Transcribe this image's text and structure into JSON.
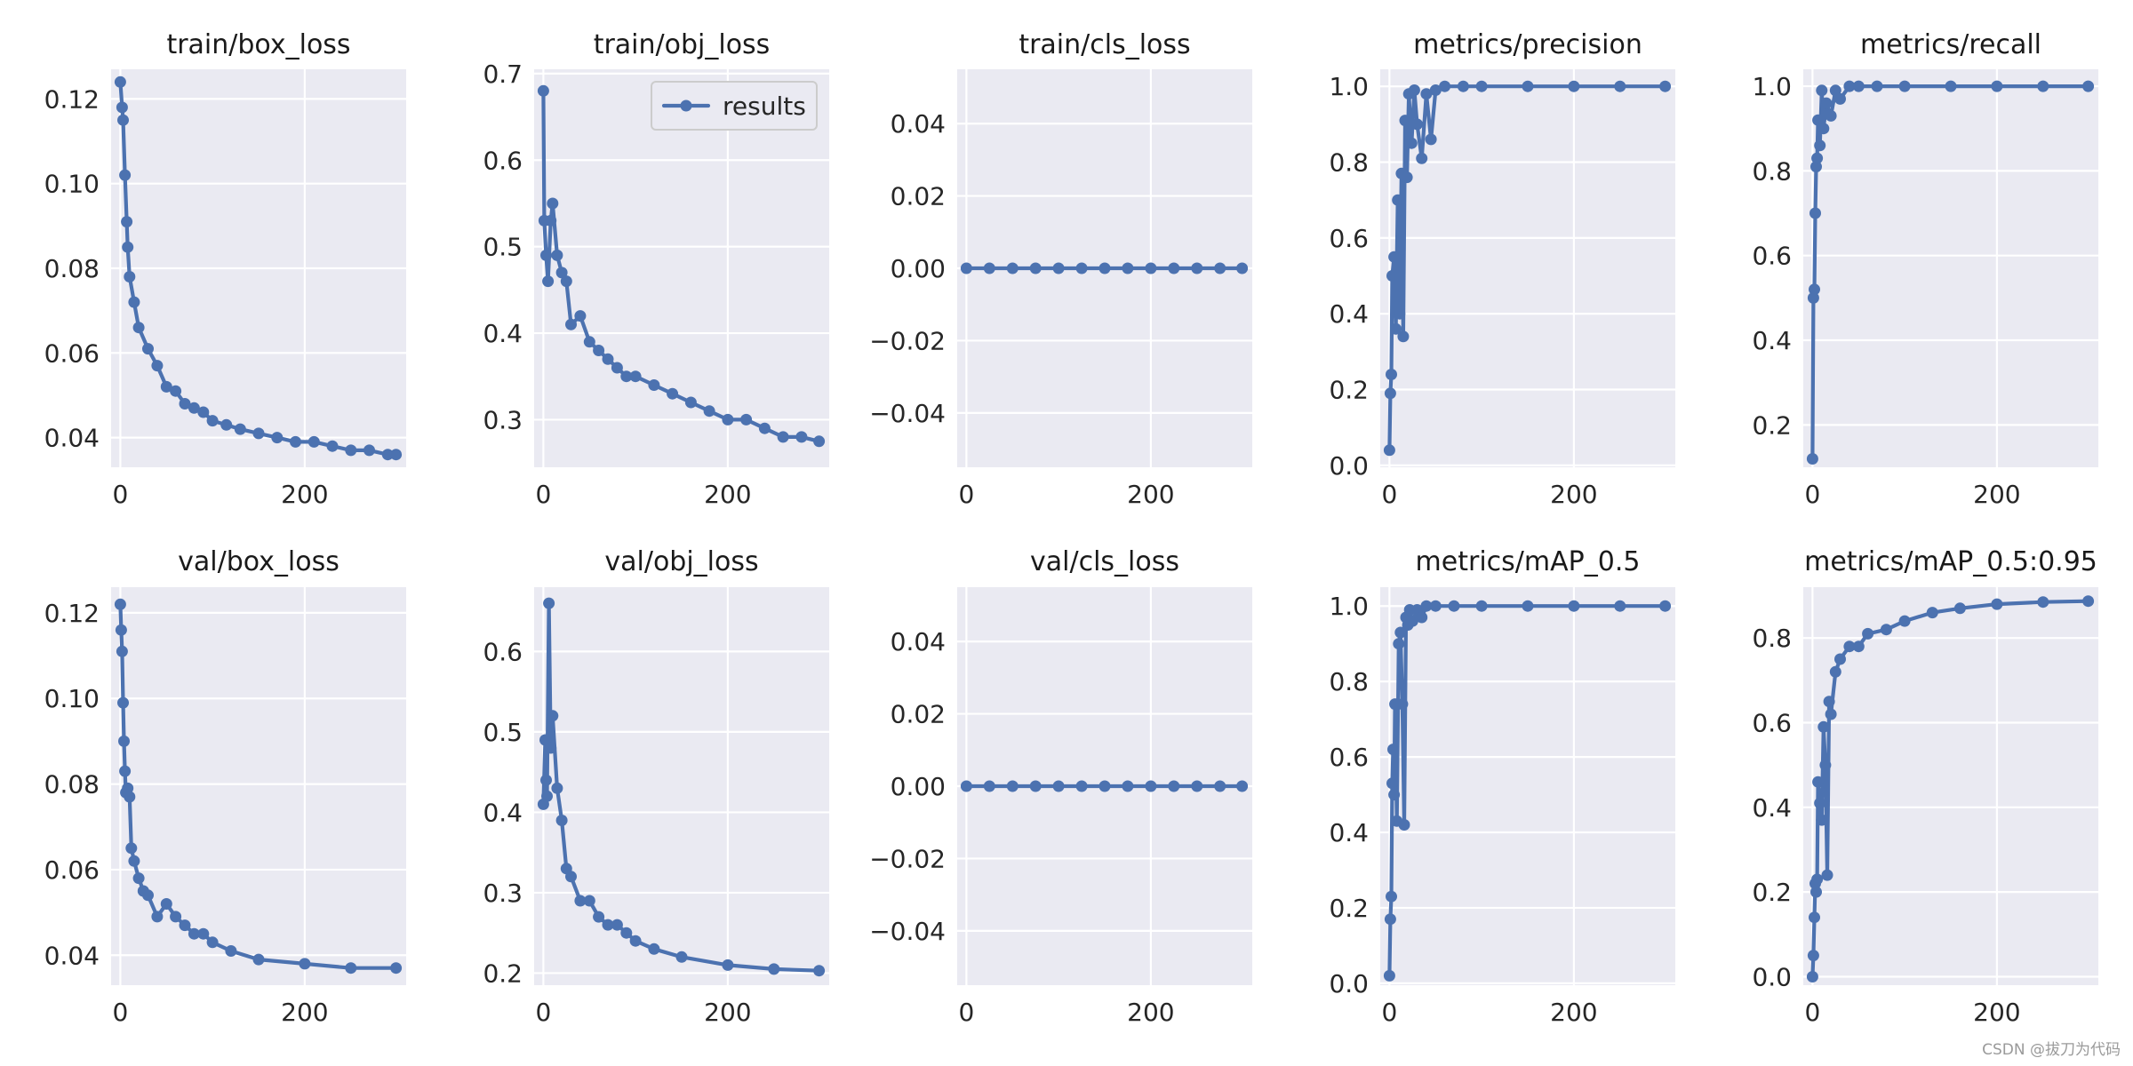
{
  "figure": {
    "watermark": "CSDN @拔刀为代码",
    "legend_label": "results",
    "series_color": "#4c72b0",
    "panel_background": "#eaeaf2"
  },
  "chart_data": [
    {
      "type": "line",
      "title": "train/box_loss",
      "xlim": [
        -10,
        310
      ],
      "ylim": [
        0.033,
        0.127
      ],
      "xticks": [
        0,
        200
      ],
      "xtick_labels": [
        "0",
        "200"
      ],
      "yticks": [
        0.04,
        0.06,
        0.08,
        0.1,
        0.12
      ],
      "ytick_labels": [
        "0.04",
        "0.06",
        "0.08",
        "0.10",
        "0.12"
      ],
      "x": [
        0,
        2,
        3,
        5,
        7,
        8,
        10,
        15,
        20,
        30,
        40,
        50,
        60,
        70,
        80,
        90,
        100,
        115,
        130,
        150,
        170,
        190,
        210,
        230,
        250,
        270,
        290,
        299
      ],
      "y": [
        0.124,
        0.118,
        0.115,
        0.102,
        0.091,
        0.085,
        0.078,
        0.072,
        0.066,
        0.061,
        0.057,
        0.052,
        0.051,
        0.048,
        0.047,
        0.046,
        0.044,
        0.043,
        0.042,
        0.041,
        0.04,
        0.039,
        0.039,
        0.038,
        0.037,
        0.037,
        0.036,
        0.036
      ]
    },
    {
      "type": "line",
      "title": "train/obj_loss",
      "xlim": [
        -10,
        310
      ],
      "ylim": [
        0.245,
        0.705
      ],
      "xticks": [
        0,
        200
      ],
      "xtick_labels": [
        "0",
        "200"
      ],
      "yticks": [
        0.3,
        0.4,
        0.5,
        0.6,
        0.7
      ],
      "ytick_labels": [
        "0.3",
        "0.4",
        "0.5",
        "0.6",
        "0.7"
      ],
      "legend": [
        "results"
      ],
      "x": [
        0,
        1,
        3,
        5,
        8,
        10,
        15,
        20,
        25,
        30,
        40,
        50,
        60,
        70,
        80,
        90,
        100,
        120,
        140,
        160,
        180,
        200,
        220,
        240,
        260,
        280,
        299
      ],
      "y": [
        0.68,
        0.53,
        0.49,
        0.46,
        0.53,
        0.55,
        0.49,
        0.47,
        0.46,
        0.41,
        0.42,
        0.39,
        0.38,
        0.37,
        0.36,
        0.35,
        0.35,
        0.34,
        0.33,
        0.32,
        0.31,
        0.3,
        0.3,
        0.29,
        0.28,
        0.28,
        0.275
      ]
    },
    {
      "type": "line",
      "title": "train/cls_loss",
      "xlim": [
        -10,
        310
      ],
      "ylim": [
        -0.055,
        0.055
      ],
      "xticks": [
        0,
        200
      ],
      "xtick_labels": [
        "0",
        "200"
      ],
      "yticks": [
        -0.04,
        -0.02,
        0.0,
        0.02,
        0.04
      ],
      "ytick_labels": [
        "−0.04",
        "−0.02",
        "0.00",
        "0.02",
        "0.04"
      ],
      "x": [
        0,
        25,
        50,
        75,
        100,
        125,
        150,
        175,
        200,
        225,
        250,
        275,
        299
      ],
      "y": [
        0,
        0,
        0,
        0,
        0,
        0,
        0,
        0,
        0,
        0,
        0,
        0,
        0
      ]
    },
    {
      "type": "line",
      "title": "metrics/precision",
      "xlim": [
        -10,
        310
      ],
      "ylim": [
        -0.005,
        1.045
      ],
      "xticks": [
        0,
        200
      ],
      "xtick_labels": [
        "0",
        "200"
      ],
      "yticks": [
        0.0,
        0.2,
        0.4,
        0.6,
        0.8,
        1.0
      ],
      "ytick_labels": [
        "0.0",
        "0.2",
        "0.4",
        "0.6",
        "0.8",
        "1.0"
      ],
      "x": [
        0,
        1,
        2,
        3,
        5,
        7,
        9,
        11,
        13,
        15,
        17,
        19,
        21,
        24,
        27,
        30,
        35,
        40,
        45,
        50,
        60,
        80,
        100,
        150,
        200,
        250,
        299
      ],
      "y": [
        0.04,
        0.19,
        0.24,
        0.5,
        0.55,
        0.36,
        0.7,
        0.4,
        0.77,
        0.34,
        0.91,
        0.76,
        0.98,
        0.85,
        0.99,
        0.9,
        0.81,
        0.98,
        0.86,
        0.99,
        1.0,
        1.0,
        1.0,
        1.0,
        1.0,
        1.0,
        1.0
      ]
    },
    {
      "type": "line",
      "title": "metrics/recall",
      "xlim": [
        -10,
        310
      ],
      "ylim": [
        0.1,
        1.04
      ],
      "xticks": [
        0,
        200
      ],
      "xtick_labels": [
        "0",
        "200"
      ],
      "yticks": [
        0.2,
        0.4,
        0.6,
        0.8,
        1.0
      ],
      "ytick_labels": [
        "0.2",
        "0.4",
        "0.6",
        "0.8",
        "1.0"
      ],
      "x": [
        0,
        1,
        2,
        3,
        4,
        5,
        6,
        8,
        10,
        12,
        15,
        20,
        25,
        30,
        40,
        50,
        70,
        100,
        150,
        200,
        250,
        299
      ],
      "y": [
        0.12,
        0.5,
        0.52,
        0.7,
        0.81,
        0.83,
        0.92,
        0.86,
        0.99,
        0.9,
        0.96,
        0.93,
        0.99,
        0.97,
        1.0,
        1.0,
        1.0,
        1.0,
        1.0,
        1.0,
        1.0,
        1.0
      ]
    },
    {
      "type": "line",
      "title": "val/box_loss",
      "xlim": [
        -10,
        310
      ],
      "ylim": [
        0.033,
        0.126
      ],
      "xticks": [
        0,
        200
      ],
      "xtick_labels": [
        "0",
        "200"
      ],
      "yticks": [
        0.04,
        0.06,
        0.08,
        0.1,
        0.12
      ],
      "ytick_labels": [
        "0.04",
        "0.06",
        "0.08",
        "0.10",
        "0.12"
      ],
      "x": [
        0,
        1,
        2,
        3,
        4,
        5,
        6,
        8,
        10,
        12,
        15,
        20,
        25,
        30,
        40,
        50,
        60,
        70,
        80,
        90,
        100,
        120,
        150,
        200,
        250,
        299
      ],
      "y": [
        0.122,
        0.116,
        0.111,
        0.099,
        0.09,
        0.083,
        0.078,
        0.079,
        0.077,
        0.065,
        0.062,
        0.058,
        0.055,
        0.054,
        0.049,
        0.052,
        0.049,
        0.047,
        0.045,
        0.045,
        0.043,
        0.041,
        0.039,
        0.038,
        0.037,
        0.037
      ]
    },
    {
      "type": "line",
      "title": "val/obj_loss",
      "xlim": [
        -10,
        310
      ],
      "ylim": [
        0.185,
        0.68
      ],
      "xticks": [
        0,
        200
      ],
      "xtick_labels": [
        "0",
        "200"
      ],
      "yticks": [
        0.2,
        0.3,
        0.4,
        0.5,
        0.6
      ],
      "ytick_labels": [
        "0.2",
        "0.3",
        "0.4",
        "0.5",
        "0.6"
      ],
      "x": [
        0,
        2,
        3,
        4,
        6,
        8,
        10,
        15,
        20,
        25,
        30,
        40,
        50,
        60,
        70,
        80,
        90,
        100,
        120,
        150,
        200,
        250,
        299
      ],
      "y": [
        0.41,
        0.49,
        0.44,
        0.42,
        0.66,
        0.48,
        0.52,
        0.43,
        0.39,
        0.33,
        0.32,
        0.29,
        0.29,
        0.27,
        0.26,
        0.26,
        0.25,
        0.24,
        0.23,
        0.22,
        0.21,
        0.205,
        0.203
      ]
    },
    {
      "type": "line",
      "title": "val/cls_loss",
      "xlim": [
        -10,
        310
      ],
      "ylim": [
        -0.055,
        0.055
      ],
      "xticks": [
        0,
        200
      ],
      "xtick_labels": [
        "0",
        "200"
      ],
      "yticks": [
        -0.04,
        -0.02,
        0.0,
        0.02,
        0.04
      ],
      "ytick_labels": [
        "−0.04",
        "−0.02",
        "0.00",
        "0.02",
        "0.04"
      ],
      "x": [
        0,
        25,
        50,
        75,
        100,
        125,
        150,
        175,
        200,
        225,
        250,
        275,
        299
      ],
      "y": [
        0,
        0,
        0,
        0,
        0,
        0,
        0,
        0,
        0,
        0,
        0,
        0,
        0
      ]
    },
    {
      "type": "line",
      "title": "metrics/mAP_0.5",
      "xlim": [
        -10,
        310
      ],
      "ylim": [
        -0.005,
        1.05
      ],
      "xticks": [
        0,
        200
      ],
      "xtick_labels": [
        "0",
        "200"
      ],
      "yticks": [
        0.0,
        0.2,
        0.4,
        0.6,
        0.8,
        1.0
      ],
      "ytick_labels": [
        "0.0",
        "0.2",
        "0.4",
        "0.6",
        "0.8",
        "1.0"
      ],
      "x": [
        0,
        1,
        2,
        3,
        4,
        5,
        6,
        8,
        10,
        12,
        14,
        16,
        18,
        20,
        22,
        25,
        30,
        35,
        40,
        50,
        70,
        100,
        150,
        200,
        250,
        299
      ],
      "y": [
        0.02,
        0.17,
        0.23,
        0.53,
        0.62,
        0.5,
        0.74,
        0.43,
        0.9,
        0.93,
        0.74,
        0.42,
        0.97,
        0.95,
        0.99,
        0.96,
        0.99,
        0.97,
        1.0,
        1.0,
        1.0,
        1.0,
        1.0,
        1.0,
        1.0,
        1.0
      ]
    },
    {
      "type": "line",
      "title": "metrics/mAP_0.5:0.95",
      "xlim": [
        -10,
        310
      ],
      "ylim": [
        -0.02,
        0.92
      ],
      "xticks": [
        0,
        200
      ],
      "xtick_labels": [
        "0",
        "200"
      ],
      "yticks": [
        0.0,
        0.2,
        0.4,
        0.6,
        0.8
      ],
      "ytick_labels": [
        "0.0",
        "0.2",
        "0.4",
        "0.6",
        "0.8"
      ],
      "x": [
        0,
        1,
        2,
        3,
        4,
        5,
        6,
        8,
        10,
        12,
        14,
        16,
        18,
        20,
        25,
        30,
        40,
        50,
        60,
        80,
        100,
        130,
        160,
        200,
        250,
        299
      ],
      "y": [
        0.0,
        0.05,
        0.14,
        0.22,
        0.2,
        0.23,
        0.46,
        0.41,
        0.37,
        0.59,
        0.5,
        0.24,
        0.65,
        0.62,
        0.72,
        0.75,
        0.78,
        0.78,
        0.81,
        0.82,
        0.84,
        0.86,
        0.87,
        0.88,
        0.885,
        0.887
      ]
    }
  ]
}
